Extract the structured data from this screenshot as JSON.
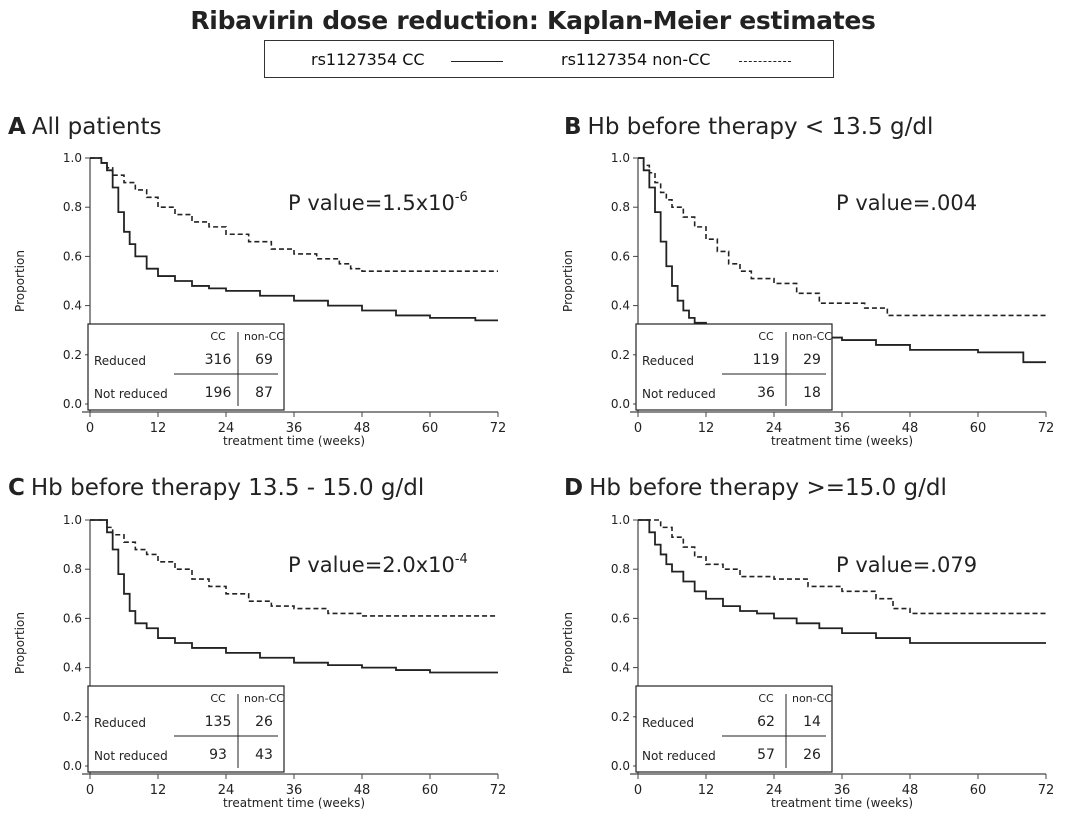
{
  "title": "Ribavirin dose reduction: Kaplan-Meier estimates",
  "legend": {
    "items": [
      {
        "label": "rs1127354 CC",
        "style": "solid"
      },
      {
        "label": "rs1127354 non-CC",
        "style": "dashed"
      }
    ]
  },
  "chart_data": [
    {
      "type": "line",
      "panel_letter": "A",
      "title": "All patients",
      "xlabel": "treatment time (weeks)",
      "ylabel": "Proportion",
      "xlim": [
        0,
        72
      ],
      "ylim": [
        0,
        1
      ],
      "xticks": [
        0,
        12,
        24,
        36,
        48,
        60,
        72
      ],
      "yticks": [
        0.0,
        0.2,
        0.4,
        0.6,
        0.8,
        1.0
      ],
      "annotation": {
        "prefix": "P value=1.5x10",
        "sup": "-6"
      },
      "series": [
        {
          "name": "rs1127354 CC",
          "style": "solid",
          "step": true,
          "x": [
            0,
            2,
            3,
            4,
            5,
            6,
            7,
            8,
            10,
            12,
            15,
            18,
            21,
            24,
            30,
            36,
            42,
            48,
            54,
            60,
            66,
            68,
            72
          ],
          "y": [
            1.0,
            0.98,
            0.95,
            0.88,
            0.78,
            0.7,
            0.65,
            0.6,
            0.55,
            0.52,
            0.5,
            0.48,
            0.47,
            0.46,
            0.44,
            0.42,
            0.4,
            0.38,
            0.36,
            0.35,
            0.35,
            0.34,
            0.34
          ]
        },
        {
          "name": "rs1127354 non-CC",
          "style": "dashed",
          "step": true,
          "x": [
            0,
            2,
            3,
            4,
            6,
            8,
            10,
            12,
            15,
            18,
            21,
            24,
            28,
            32,
            36,
            40,
            44,
            46,
            48,
            72
          ],
          "y": [
            1.0,
            0.98,
            0.96,
            0.93,
            0.9,
            0.87,
            0.84,
            0.8,
            0.77,
            0.74,
            0.72,
            0.69,
            0.66,
            0.63,
            0.61,
            0.59,
            0.57,
            0.55,
            0.54,
            0.54
          ]
        }
      ],
      "table": {
        "col_headers": [
          "CC",
          "non-CC"
        ],
        "rows": [
          {
            "label": "Reduced",
            "values": [
              "316",
              "69"
            ]
          },
          {
            "label": "Not reduced",
            "values": [
              "196",
              "87"
            ]
          }
        ]
      }
    },
    {
      "type": "line",
      "panel_letter": "B",
      "title": "Hb before therapy < 13.5 g/dl",
      "xlabel": "treatment time (weeks)",
      "ylabel": "Proportion",
      "xlim": [
        0,
        72
      ],
      "ylim": [
        0,
        1
      ],
      "xticks": [
        0,
        12,
        24,
        36,
        48,
        60,
        72
      ],
      "yticks": [
        0.0,
        0.2,
        0.4,
        0.6,
        0.8,
        1.0
      ],
      "annotation": {
        "prefix": "P value=.004",
        "sup": ""
      },
      "series": [
        {
          "name": "rs1127354 CC",
          "style": "solid",
          "step": true,
          "x": [
            0,
            1,
            2,
            3,
            4,
            5,
            6,
            7,
            8,
            9,
            10,
            12,
            15,
            18,
            24,
            30,
            36,
            42,
            48,
            54,
            60,
            66,
            68,
            72
          ],
          "y": [
            1.0,
            0.95,
            0.88,
            0.78,
            0.66,
            0.56,
            0.48,
            0.42,
            0.38,
            0.35,
            0.33,
            0.31,
            0.3,
            0.29,
            0.28,
            0.27,
            0.26,
            0.24,
            0.22,
            0.22,
            0.21,
            0.21,
            0.17,
            0.17
          ]
        },
        {
          "name": "rs1127354 non-CC",
          "style": "dashed",
          "step": true,
          "x": [
            0,
            1,
            2,
            3,
            4,
            5,
            6,
            8,
            10,
            12,
            14,
            16,
            18,
            20,
            24,
            28,
            32,
            36,
            40,
            44,
            46,
            48,
            72
          ],
          "y": [
            1.0,
            0.97,
            0.94,
            0.9,
            0.86,
            0.83,
            0.8,
            0.76,
            0.72,
            0.67,
            0.62,
            0.57,
            0.54,
            0.51,
            0.49,
            0.45,
            0.41,
            0.41,
            0.39,
            0.36,
            0.36,
            0.36,
            0.36
          ]
        }
      ],
      "table": {
        "col_headers": [
          "CC",
          "non-CC"
        ],
        "rows": [
          {
            "label": "Reduced",
            "values": [
              "119",
              "29"
            ]
          },
          {
            "label": "Not reduced",
            "values": [
              "36",
              "18"
            ]
          }
        ]
      }
    },
    {
      "type": "line",
      "panel_letter": "C",
      "title": "Hb before therapy 13.5 - 15.0 g/dl",
      "xlabel": "treatment time (weeks)",
      "ylabel": "Proportion",
      "xlim": [
        0,
        72
      ],
      "ylim": [
        0,
        1
      ],
      "xticks": [
        0,
        12,
        24,
        36,
        48,
        60,
        72
      ],
      "yticks": [
        0.0,
        0.2,
        0.4,
        0.6,
        0.8,
        1.0
      ],
      "annotation": {
        "prefix": "P value=2.0x10",
        "sup": "-4"
      },
      "series": [
        {
          "name": "rs1127354 CC",
          "style": "solid",
          "step": true,
          "x": [
            0,
            3,
            4,
            5,
            6,
            7,
            8,
            10,
            12,
            15,
            18,
            24,
            30,
            36,
            42,
            48,
            54,
            60,
            66,
            72
          ],
          "y": [
            1.0,
            0.95,
            0.88,
            0.78,
            0.7,
            0.63,
            0.58,
            0.56,
            0.52,
            0.5,
            0.48,
            0.46,
            0.44,
            0.42,
            0.41,
            0.4,
            0.39,
            0.38,
            0.38,
            0.38
          ]
        },
        {
          "name": "rs1127354 non-CC",
          "style": "dashed",
          "step": true,
          "x": [
            0,
            3,
            4,
            6,
            8,
            10,
            12,
            15,
            18,
            21,
            24,
            28,
            32,
            36,
            42,
            48,
            72
          ],
          "y": [
            1.0,
            0.97,
            0.94,
            0.91,
            0.88,
            0.86,
            0.83,
            0.8,
            0.76,
            0.73,
            0.7,
            0.67,
            0.65,
            0.64,
            0.62,
            0.61,
            0.61
          ]
        }
      ],
      "table": {
        "col_headers": [
          "CC",
          "non-CC"
        ],
        "rows": [
          {
            "label": "Reduced",
            "values": [
              "135",
              "26"
            ]
          },
          {
            "label": "Not reduced",
            "values": [
              "93",
              "43"
            ]
          }
        ]
      }
    },
    {
      "type": "line",
      "panel_letter": "D",
      "title": "Hb before therapy >=15.0 g/dl",
      "xlabel": "treatment time (weeks)",
      "ylabel": "Proportion",
      "xlim": [
        0,
        72
      ],
      "ylim": [
        0,
        1
      ],
      "xticks": [
        0,
        12,
        24,
        36,
        48,
        60,
        72
      ],
      "yticks": [
        0.0,
        0.2,
        0.4,
        0.6,
        0.8,
        1.0
      ],
      "annotation": {
        "prefix": "P value=.079",
        "sup": ""
      },
      "series": [
        {
          "name": "rs1127354 CC",
          "style": "solid",
          "step": true,
          "x": [
            0,
            2,
            3,
            4,
            5,
            6,
            8,
            10,
            12,
            15,
            18,
            21,
            24,
            28,
            32,
            36,
            42,
            48,
            72
          ],
          "y": [
            1.0,
            0.95,
            0.9,
            0.86,
            0.82,
            0.79,
            0.75,
            0.71,
            0.68,
            0.65,
            0.63,
            0.62,
            0.6,
            0.58,
            0.56,
            0.54,
            0.52,
            0.5,
            0.5
          ]
        },
        {
          "name": "rs1127354 non-CC",
          "style": "dashed",
          "step": true,
          "x": [
            0,
            4,
            6,
            8,
            10,
            12,
            15,
            18,
            24,
            30,
            36,
            42,
            45,
            48,
            72
          ],
          "y": [
            1.0,
            0.97,
            0.93,
            0.89,
            0.85,
            0.82,
            0.8,
            0.77,
            0.76,
            0.73,
            0.71,
            0.68,
            0.64,
            0.62,
            0.62
          ]
        }
      ],
      "table": {
        "col_headers": [
          "CC",
          "non-CC"
        ],
        "rows": [
          {
            "label": "Reduced",
            "values": [
              "62",
              "14"
            ]
          },
          {
            "label": "Not reduced",
            "values": [
              "57",
              "26"
            ]
          }
        ]
      }
    }
  ]
}
